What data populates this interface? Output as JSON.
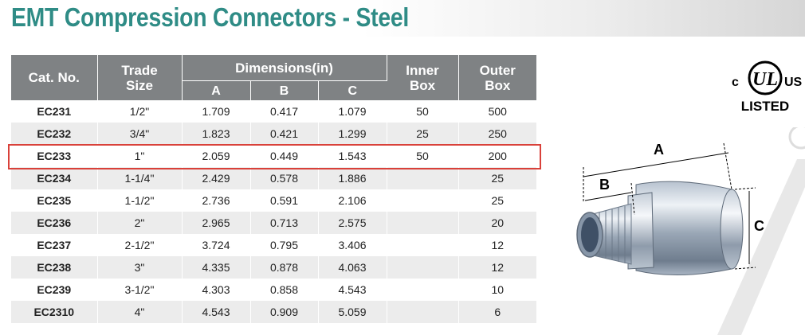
{
  "title": "EMT Compression Connectors - Steel",
  "table": {
    "headers": {
      "cat_no": "Cat. No.",
      "trade_line1": "Trade",
      "trade_line2": "Size",
      "dimensions": "Dimensions(in)",
      "a": "A",
      "b": "B",
      "c": "C",
      "inner_line1": "Inner",
      "inner_line2": "Box",
      "outer_line1": "Outer",
      "outer_line2": "Box"
    },
    "rows": [
      {
        "cat": "EC231",
        "trade": "1/2\"",
        "a": "1.709",
        "b": "0.417",
        "c": "1.079",
        "inner": "50",
        "outer": "500"
      },
      {
        "cat": "EC232",
        "trade": "3/4\"",
        "a": "1.823",
        "b": "0.421",
        "c": "1.299",
        "inner": "25",
        "outer": "250"
      },
      {
        "cat": "EC233",
        "trade": "1\"",
        "a": "2.059",
        "b": "0.449",
        "c": "1.543",
        "inner": "50",
        "outer": "200"
      },
      {
        "cat": "EC234",
        "trade": "1-1/4\"",
        "a": "2.429",
        "b": "0.578",
        "c": "1.886",
        "inner": "",
        "outer": "25"
      },
      {
        "cat": "EC235",
        "trade": "1-1/2\"",
        "a": "2.736",
        "b": "0.591",
        "c": "2.106",
        "inner": "",
        "outer": "25"
      },
      {
        "cat": "EC236",
        "trade": "2\"",
        "a": "2.965",
        "b": "0.713",
        "c": "2.575",
        "inner": "",
        "outer": "20"
      },
      {
        "cat": "EC237",
        "trade": "2-1/2\"",
        "a": "3.724",
        "b": "0.795",
        "c": "3.406",
        "inner": "",
        "outer": "12"
      },
      {
        "cat": "EC238",
        "trade": "3\"",
        "a": "4.335",
        "b": "0.878",
        "c": "4.063",
        "inner": "",
        "outer": "12"
      },
      {
        "cat": "EC239",
        "trade": "3-1/2\"",
        "a": "4.303",
        "b": "0.858",
        "c": "4.543",
        "inner": "",
        "outer": "10"
      },
      {
        "cat": "EC2310",
        "trade": "4\"",
        "a": "4.543",
        "b": "0.909",
        "c": "5.059",
        "inner": "",
        "outer": "6"
      }
    ]
  },
  "ul_mark": {
    "c": "c",
    "ul": "UL",
    "us": "US",
    "listed": "LISTED"
  },
  "diagram": {
    "label_a": "A",
    "label_b": "B",
    "label_c": "C"
  },
  "colors": {
    "title": "#2f8c86",
    "header_bg": "#7f8284",
    "alt_row": "#ececec",
    "highlight": "#d9413a"
  }
}
